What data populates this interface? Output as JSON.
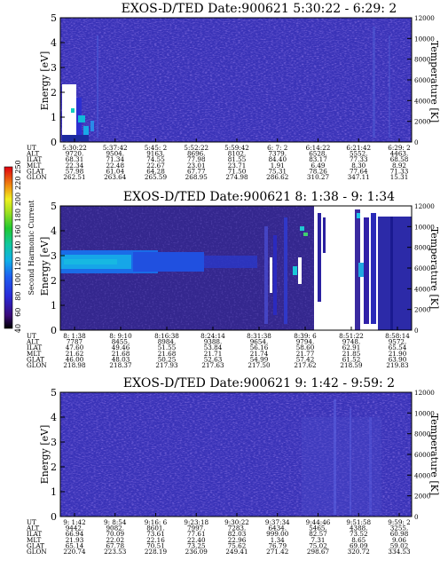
{
  "chart_data": [
    {
      "type": "heatmap",
      "title": "EXOS-D/TED   Date:900621   5:30:22 - 6:29: 2",
      "ylabel": "Energy [eV]",
      "y2label": "Temperature [K]",
      "ylim": [
        0,
        5
      ],
      "yticks": [
        "0",
        "1",
        "2",
        "3",
        "4",
        "5"
      ],
      "y2lim": [
        0,
        12000
      ],
      "y2ticks": [
        "0",
        "2000",
        "4000",
        "6000",
        "8000",
        "10000",
        "12000"
      ],
      "row_labels": [
        "UT",
        "ALT",
        "ILAT",
        "MLT",
        "GLAT",
        "GLON"
      ],
      "columns": [
        [
          "5:30:22",
          "9720.",
          "68.31",
          "22.34",
          "57.98",
          "262.51"
        ],
        [
          "5:37:42",
          "9504.",
          "71.34",
          "22.48",
          "61.04",
          "263.64"
        ],
        [
          "5:45: 2",
          "9163.",
          "74.55",
          "22.67",
          "64.28",
          "265.59"
        ],
        [
          "5:52:22",
          "8696.",
          "77.98",
          "23.01",
          "67.77",
          "268.95"
        ],
        [
          "5:59:42",
          "8102.",
          "81.55",
          "23.71",
          "71.50",
          "274.98"
        ],
        [
          "6: 7: 2",
          "7379.",
          "84.40",
          "1.91",
          "75.31",
          "286.62"
        ],
        [
          "6:14:22",
          "6528.",
          "83.17",
          "6.49",
          "78.26",
          "310.27"
        ],
        [
          "6:21:42",
          "5552.",
          "77.33",
          "8.30",
          "77.64",
          "347.11"
        ],
        [
          "6:29: 2",
          "4463.",
          "68.58",
          "8.92",
          "71.33",
          "15.31"
        ]
      ]
    },
    {
      "type": "heatmap",
      "title": "EXOS-D/TED   Date:900621   8: 1:38 - 9: 1:34",
      "ylabel": "Energy [eV]",
      "y2label": "Temperature [K]",
      "ylim": [
        0,
        5
      ],
      "yticks": [
        "0",
        "1",
        "2",
        "3",
        "4",
        "5"
      ],
      "y2lim": [
        0,
        12000
      ],
      "y2ticks": [
        "0",
        "2000",
        "4000",
        "6000",
        "8000",
        "10000",
        "12000"
      ],
      "colorbar": {
        "label": "Second Harmonic Current",
        "ticks": [
          "40",
          "60",
          "80",
          "100",
          "120",
          "140",
          "160",
          "180",
          "200",
          "220",
          "250"
        ]
      },
      "row_labels": [
        "UT",
        "ALT",
        "ILAT",
        "MLT",
        "GLAT",
        "GLON"
      ],
      "columns": [
        [
          "8: 1:38",
          "7787",
          "47.60",
          "21.62",
          "46.00",
          "218.98"
        ],
        [
          "8: 9:10",
          "8455.",
          "49.46",
          "21.68",
          "48.03",
          "218.37"
        ],
        [
          "8:16:38",
          "8984.",
          "51.55",
          "21.68",
          "50.25",
          "217.93"
        ],
        [
          "8:24:14",
          "9388.",
          "53.84",
          "21.71",
          "52.63",
          "217.63"
        ],
        [
          "8:31:38",
          "9654.",
          "56.16",
          "21.74",
          "54.99",
          "217.50"
        ],
        [
          "8:39: 6",
          "9794.",
          "58.60",
          "21.77",
          "57.42",
          "217.62"
        ],
        [
          "8:51:22",
          "9748.",
          "62.91",
          "21.85",
          "61.52",
          "218.59"
        ],
        [
          "8:58:14",
          "9572.",
          "65.54",
          "21.90",
          "63.90",
          "219.83"
        ]
      ]
    },
    {
      "type": "heatmap",
      "title": "EXOS-D/TED   Date:900621   9: 1:42 - 9:59: 2",
      "ylabel": "Energy [eV]",
      "y2label": "Temperature [K]",
      "ylim": [
        0,
        5
      ],
      "yticks": [
        "0",
        "1",
        "2",
        "3",
        "4",
        "5"
      ],
      "y2lim": [
        0,
        12000
      ],
      "y2ticks": [
        "0",
        "2000",
        "4000",
        "6000",
        "8000",
        "10000",
        "12000"
      ],
      "row_labels": [
        "UT",
        "ALT",
        "ILAT",
        "MLT",
        "GLAT",
        "GLON"
      ],
      "columns": [
        [
          "9: 1:42",
          "9442.",
          "66.94",
          "21.93",
          "65.14",
          "220.74"
        ],
        [
          "9: 8:54",
          "9082.",
          "70.09",
          "22.02",
          "67.78",
          "223.53"
        ],
        [
          "9:16: 6",
          "8601.",
          "73.61",
          "22.16",
          "70.51",
          "228.19"
        ],
        [
          "9:23:18",
          "7997.",
          "77.61",
          "22.40",
          "73.25",
          "236.09"
        ],
        [
          "9:30:22",
          "7283.",
          "82.03",
          "22.96",
          "75.62",
          "249.41"
        ],
        [
          "9:37:34",
          "6434.",
          "999.00",
          "1.34",
          "76.79",
          "271.42"
        ],
        [
          "9:44:46",
          "5465.",
          "82.57",
          "7.31",
          "75.02",
          "298.67"
        ],
        [
          "9:51:58",
          "4388.",
          "73.52",
          "8.65",
          "69.09",
          "320.72"
        ],
        [
          "9:59: 2",
          "3255.",
          "60.98",
          "9.06",
          "59.02",
          "334.53"
        ]
      ]
    }
  ]
}
